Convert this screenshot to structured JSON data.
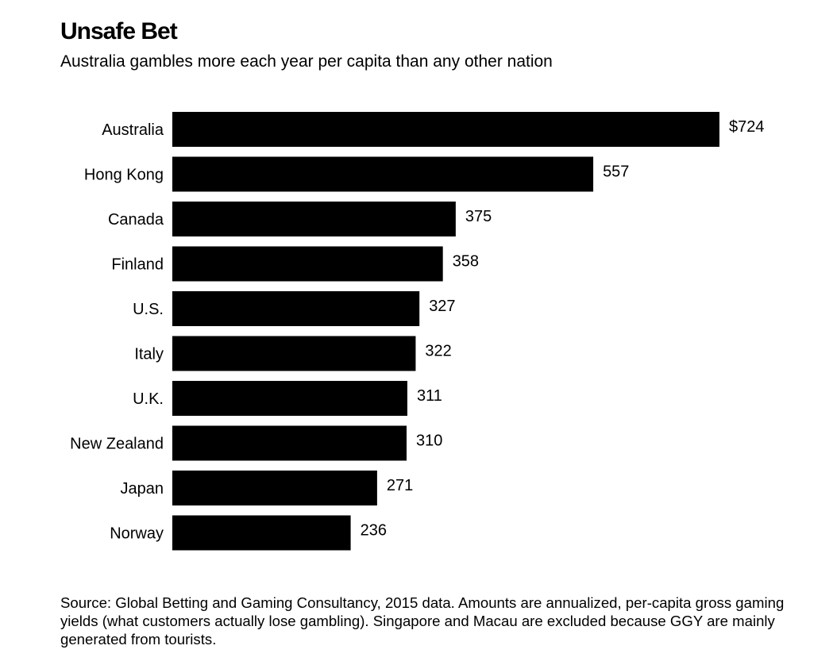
{
  "title": "Unsafe Bet",
  "subtitle": "Australia gambles more each year per capita than any other nation",
  "source": "Source: Global Betting and Gaming Consultancy, 2015 data. Amounts are annualized, per-capita gross gaming yields (what customers actually lose gambling). Singapore and Macau are excluded because GGY are mainly generated from tourists.",
  "colors": {
    "bar": "#000000",
    "text": "#000000",
    "background": "#ffffff"
  },
  "chart_data": {
    "type": "bar",
    "orientation": "horizontal",
    "title": "Unsafe Bet",
    "subtitle": "Australia gambles more each year per capita than any other nation",
    "categories": [
      "Australia",
      "Hong Kong",
      "Canada",
      "Finland",
      "U.S.",
      "Italy",
      "U.K.",
      "New Zealand",
      "Japan",
      "Norway"
    ],
    "values": [
      724,
      557,
      375,
      358,
      327,
      322,
      311,
      310,
      271,
      236
    ],
    "value_labels": [
      "$724",
      "557",
      "375",
      "358",
      "327",
      "322",
      "311",
      "310",
      "271",
      "236"
    ],
    "xlim": [
      0,
      724
    ],
    "grid": false,
    "legend": "none"
  }
}
